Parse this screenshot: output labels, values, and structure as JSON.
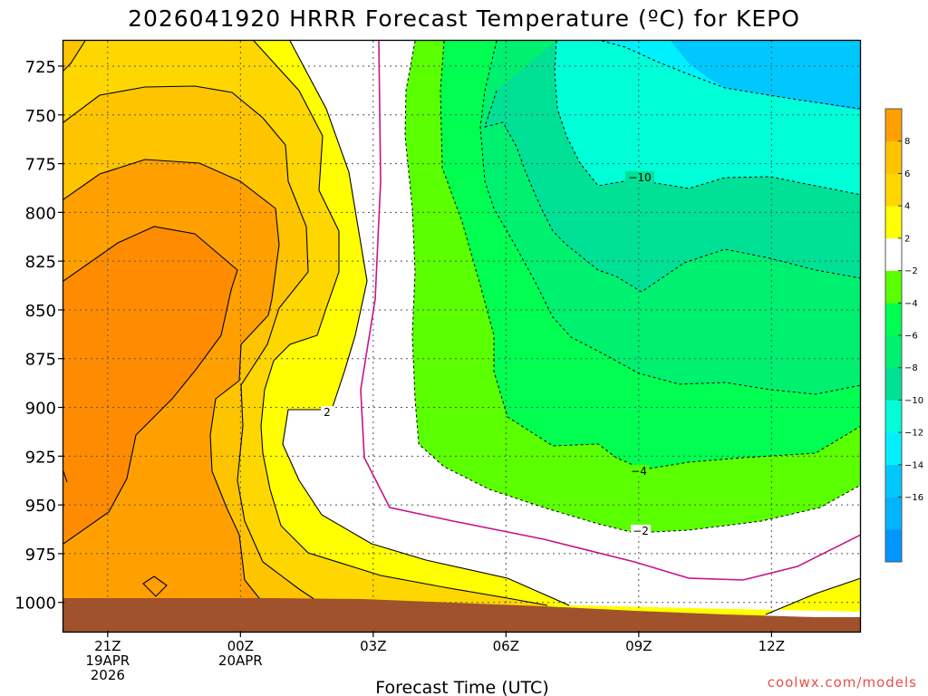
{
  "chart_data": {
    "type": "heatmap",
    "title": "2026041920 HRRR Forecast Temperature (ºC) for KEPO",
    "xlabel": "Forecast Time (UTC)",
    "ylabel": "",
    "y_ticks": [
      "725",
      "750",
      "775",
      "800",
      "825",
      "850",
      "875",
      "900",
      "925",
      "950",
      "975",
      "1000"
    ],
    "x_ticks": [
      {
        "hour": 1,
        "lines": [
          "21Z",
          "19APR",
          "2026"
        ]
      },
      {
        "hour": 4,
        "lines": [
          "00Z",
          "20APR"
        ]
      },
      {
        "hour": 7,
        "lines": [
          "03Z"
        ]
      },
      {
        "hour": 10,
        "lines": [
          "06Z"
        ]
      },
      {
        "hour": 13,
        "lines": [
          "09Z"
        ]
      },
      {
        "hour": 16,
        "lines": [
          "12Z"
        ]
      }
    ],
    "xlim": [
      0,
      18
    ],
    "ylim": [
      1015,
      712
    ],
    "colorbar": {
      "levels": [
        -18,
        -16,
        -14,
        -12,
        -10,
        -8,
        -6,
        -4,
        -2,
        2,
        4,
        6,
        8,
        10
      ],
      "tick_labels": [
        "8",
        "6",
        "4",
        "2",
        "−2",
        "−4",
        "−6",
        "−8",
        "−10",
        "−12",
        "−14",
        "−16"
      ]
    },
    "contour_labels": [
      "2",
      "−10",
      "−4",
      "−2"
    ],
    "terrain_color": "#a0522d",
    "watermark": "coolwx.com/models"
  }
}
